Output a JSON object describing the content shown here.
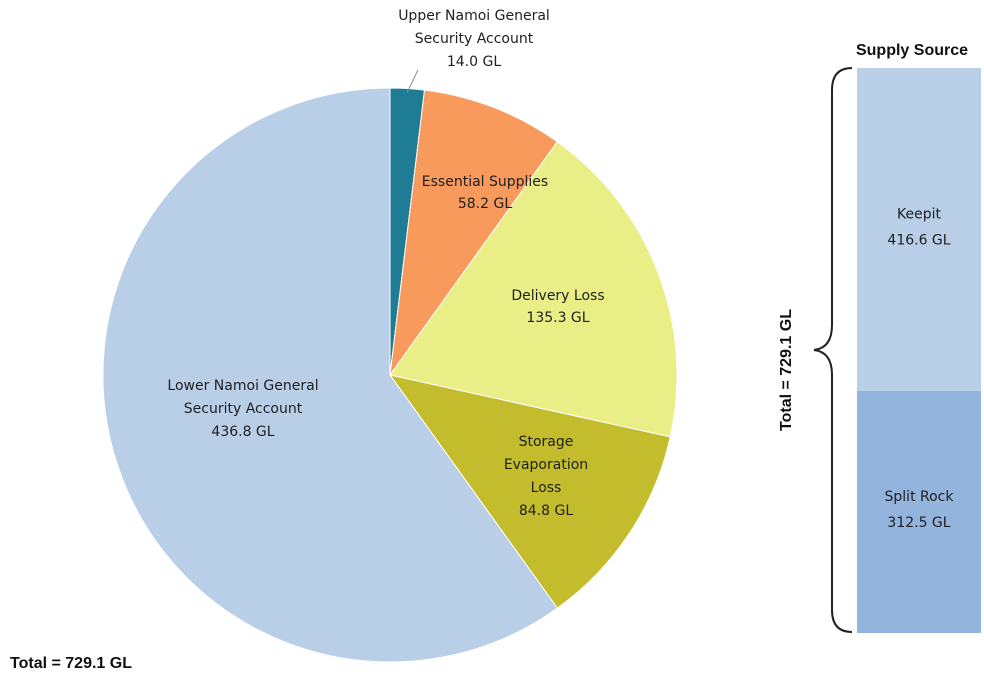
{
  "chart_data": [
    {
      "type": "pie",
      "title": "",
      "total_label": "Total = 729.1 GL",
      "slices": [
        {
          "name_lines": [
            "Upper Namoi General",
            "Security Account"
          ],
          "value": 14.0,
          "value_label": "14.0 GL",
          "color": "#1F7C95"
        },
        {
          "name_lines": [
            "Essential Supplies"
          ],
          "value": 58.2,
          "value_label": "58.2 GL",
          "color": "#F79A5C"
        },
        {
          "name_lines": [
            "Delivery Loss"
          ],
          "value": 135.3,
          "value_label": "135.3 GL",
          "color": "#E9EF86"
        },
        {
          "name_lines": [
            "Storage",
            "Evaporation",
            "Loss"
          ],
          "value": 84.8,
          "value_label": "84.8 GL",
          "color": "#C3BD2E"
        },
        {
          "name_lines": [
            "Lower Namoi General",
            "Security Account"
          ],
          "value": 436.8,
          "value_label": "436.8 GL",
          "color": "#B9CFE8"
        }
      ]
    },
    {
      "type": "bar",
      "stacked": true,
      "title": "Supply Source",
      "total_label": "Total = 729.1 GL",
      "segments": [
        {
          "name": "Keepit",
          "value": 416.6,
          "value_label": "416.6 GL",
          "color": "#B9CFE8"
        },
        {
          "name": "Split Rock",
          "value": 312.5,
          "value_label": "312.5 GL",
          "color": "#93B4DC"
        }
      ]
    }
  ]
}
